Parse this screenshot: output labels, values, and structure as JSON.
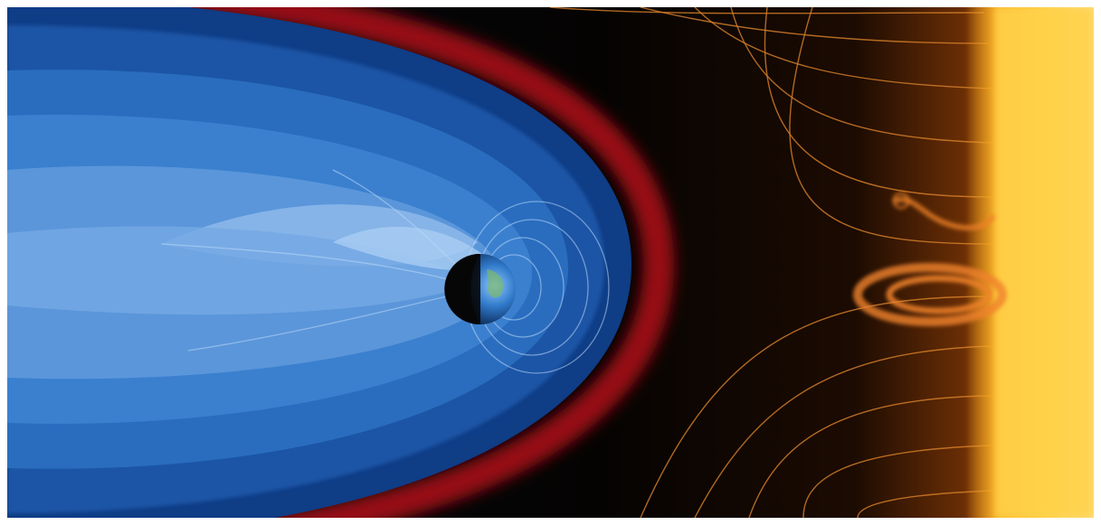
{
  "image": {
    "subject": "magnetosphere",
    "colors": {
      "space": "#050302",
      "field_blue": "#2f7fd0",
      "field_light": "#a9cdf2",
      "bow_shock": "#c8121a",
      "sun_core": "#ffd24a",
      "sun_edge": "#f5a21c",
      "wind_line": "#d9822b"
    },
    "elements": [
      "magnetosphere-field",
      "bow-shock",
      "earth",
      "solar-wind-lines",
      "solar-flare",
      "sun"
    ]
  }
}
